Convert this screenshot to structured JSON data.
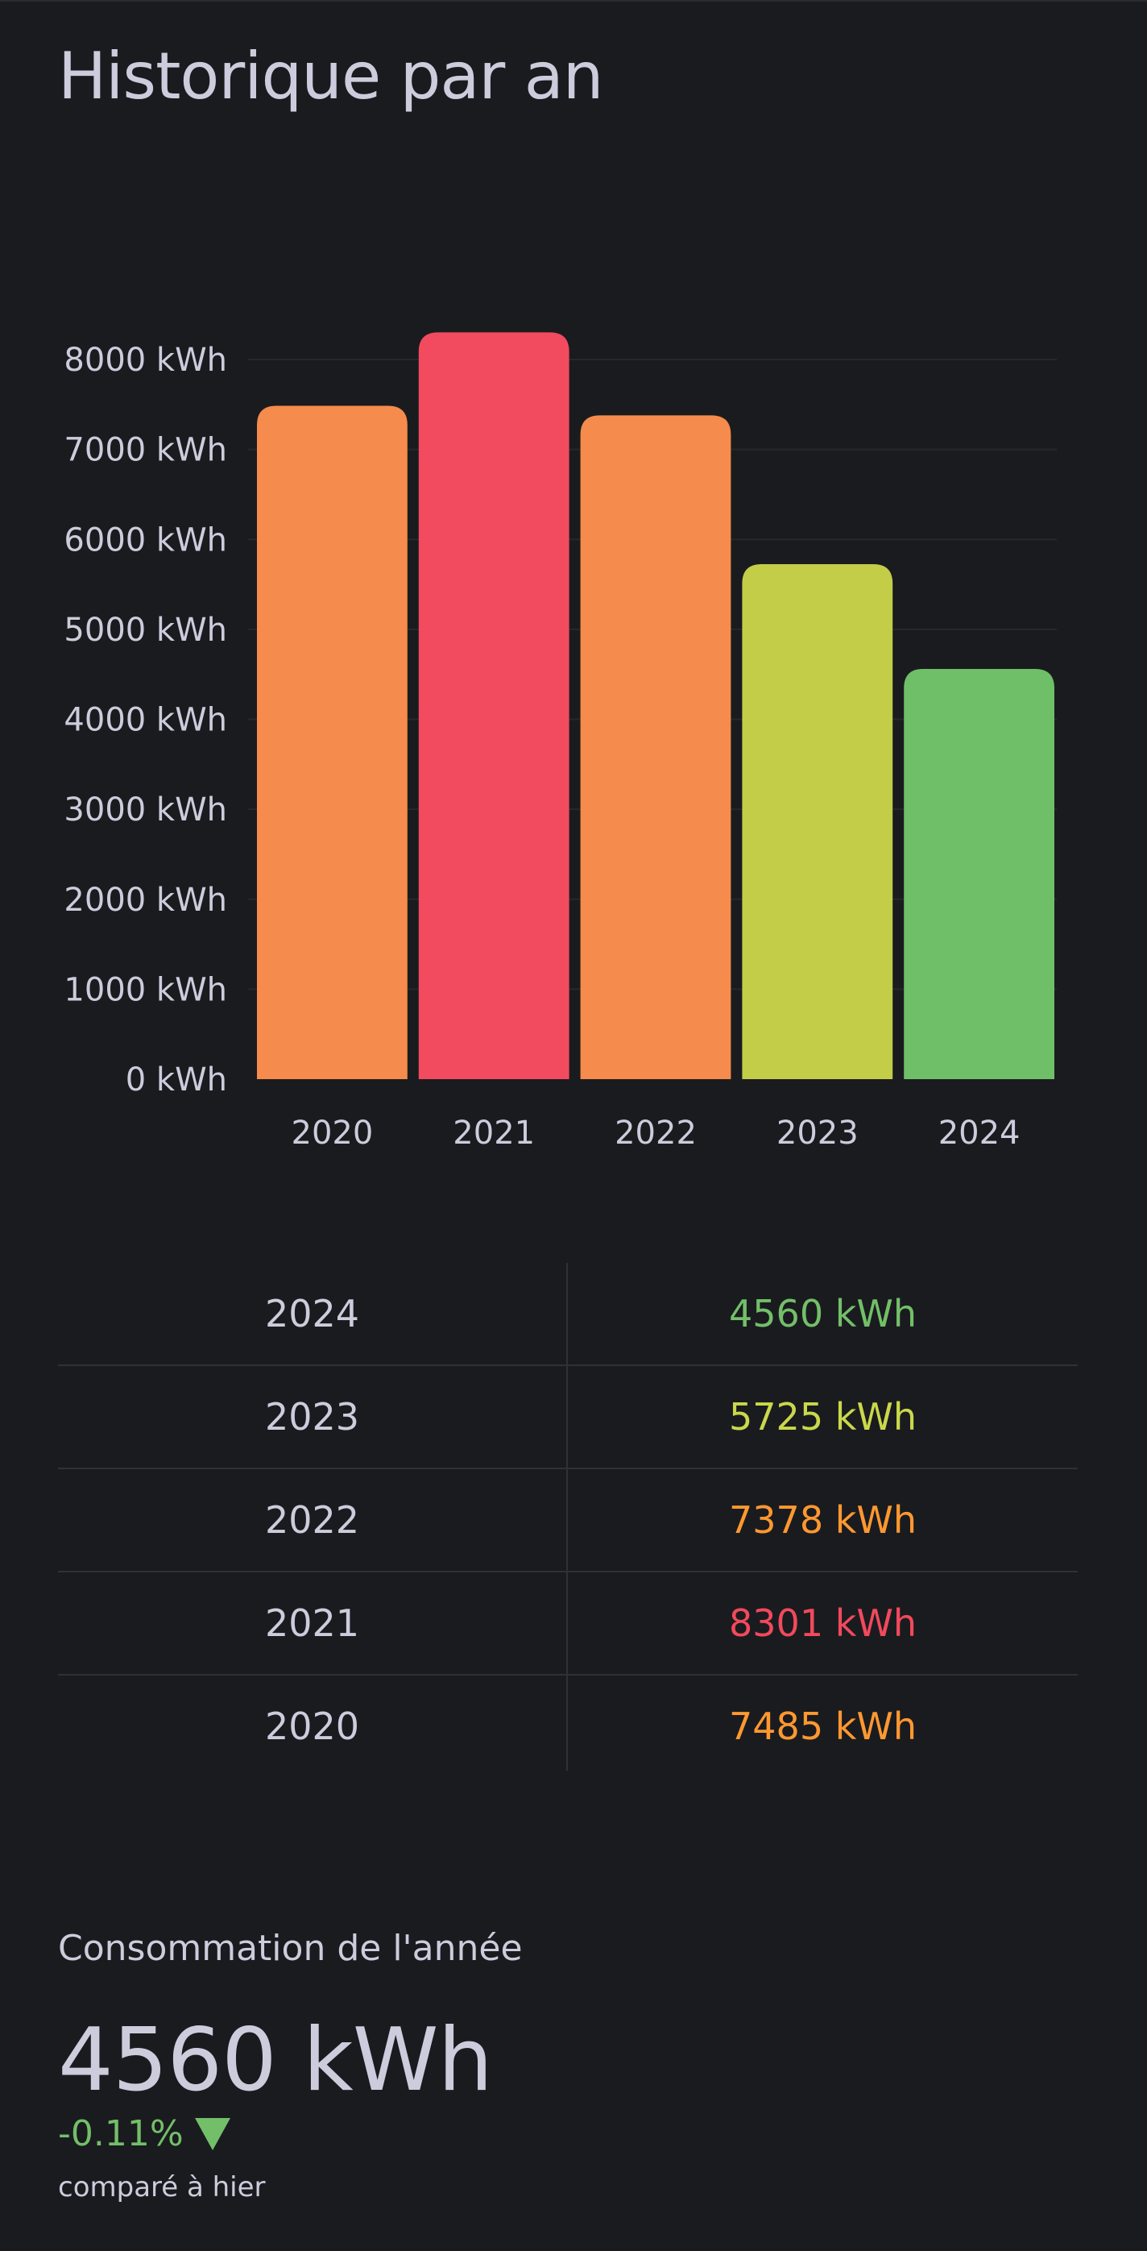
{
  "title": "Historique par an",
  "chart_data": {
    "type": "bar",
    "categories": [
      "2020",
      "2021",
      "2022",
      "2023",
      "2024"
    ],
    "values": [
      7485,
      8301,
      7378,
      5725,
      4560
    ],
    "colors": [
      "#f58b4c",
      "#f24b5f",
      "#f58b4c",
      "#c3cd48",
      "#6fbf68"
    ],
    "unit": "kWh",
    "yticks": [
      "0 kWh",
      "1000 kWh",
      "2000 kWh",
      "3000 kWh",
      "4000 kWh",
      "5000 kWh",
      "6000 kWh",
      "7000 kWh",
      "8000 kWh"
    ],
    "ylim": [
      0,
      8000
    ],
    "grid": true
  },
  "table": {
    "rows": [
      {
        "year": "2024",
        "value": "4560 kWh",
        "color": "#73bf69"
      },
      {
        "year": "2023",
        "value": "5725 kWh",
        "color": "#cad84a"
      },
      {
        "year": "2022",
        "value": "7378 kWh",
        "color": "#ff9830"
      },
      {
        "year": "2021",
        "value": "8301 kWh",
        "color": "#f2495c"
      },
      {
        "year": "2020",
        "value": "7485 kWh",
        "color": "#ff9830"
      }
    ]
  },
  "stat": {
    "title": "Consommation de l'année",
    "value": "4560 kWh",
    "delta": "-0.11%",
    "delta_icon": "triangle-down-icon",
    "subtext": "comparé à hier"
  }
}
